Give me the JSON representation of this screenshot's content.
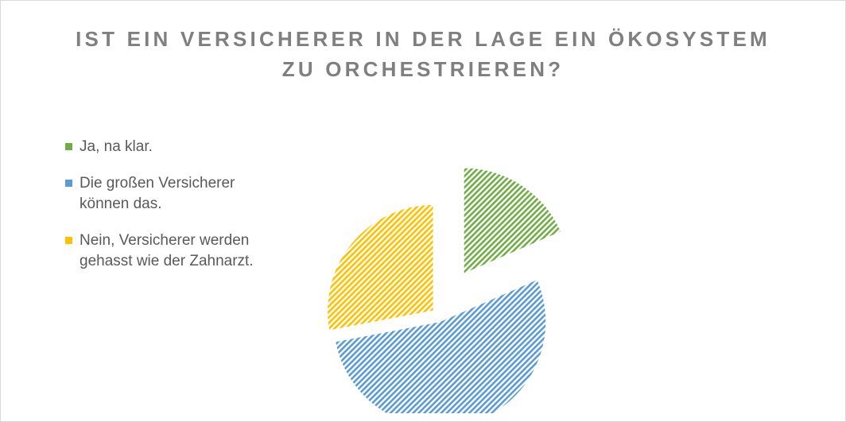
{
  "chart_data": {
    "type": "pie",
    "title_lines": [
      "IST EIN VERSICHERER IN DER LAGE EIN ÖKOSYSTEM",
      "ZU ORCHESTRIEREN?"
    ],
    "legend_position": "left",
    "exploded": true,
    "fill_pattern": "diagonal hatch",
    "slices": [
      {
        "label_lines": [
          "Ja, na klar."
        ],
        "value": 18.5,
        "color": "#70ad47"
      },
      {
        "label_lines": [
          "Die großen Versicherer",
          "können das."
        ],
        "value": 53.5,
        "color": "#5b9bd5"
      },
      {
        "label_lines": [
          "Nein, Versicherer werden",
          "gehasst wie der Zahnarzt."
        ],
        "value": 28,
        "color": "#ffc000"
      }
    ]
  }
}
